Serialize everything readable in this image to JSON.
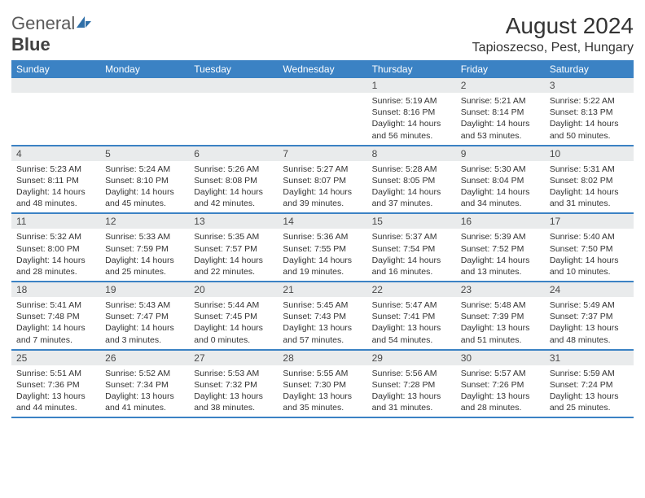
{
  "logo": {
    "text1": "General",
    "text2": "Blue"
  },
  "title": "August 2024",
  "location": "Tapioszecso, Pest, Hungary",
  "colors": {
    "header_bar": "#3b82c4",
    "day_number_bg": "#e9ebec",
    "text": "#333333",
    "logo_gray": "#5a5a5a",
    "logo_blue": "#2f6fa8"
  },
  "dow": [
    "Sunday",
    "Monday",
    "Tuesday",
    "Wednesday",
    "Thursday",
    "Friday",
    "Saturday"
  ],
  "weeks": [
    [
      {
        "n": "",
        "lines": []
      },
      {
        "n": "",
        "lines": []
      },
      {
        "n": "",
        "lines": []
      },
      {
        "n": "",
        "lines": []
      },
      {
        "n": "1",
        "lines": [
          "Sunrise: 5:19 AM",
          "Sunset: 8:16 PM",
          "Daylight: 14 hours",
          "and 56 minutes."
        ]
      },
      {
        "n": "2",
        "lines": [
          "Sunrise: 5:21 AM",
          "Sunset: 8:14 PM",
          "Daylight: 14 hours",
          "and 53 minutes."
        ]
      },
      {
        "n": "3",
        "lines": [
          "Sunrise: 5:22 AM",
          "Sunset: 8:13 PM",
          "Daylight: 14 hours",
          "and 50 minutes."
        ]
      }
    ],
    [
      {
        "n": "4",
        "lines": [
          "Sunrise: 5:23 AM",
          "Sunset: 8:11 PM",
          "Daylight: 14 hours",
          "and 48 minutes."
        ]
      },
      {
        "n": "5",
        "lines": [
          "Sunrise: 5:24 AM",
          "Sunset: 8:10 PM",
          "Daylight: 14 hours",
          "and 45 minutes."
        ]
      },
      {
        "n": "6",
        "lines": [
          "Sunrise: 5:26 AM",
          "Sunset: 8:08 PM",
          "Daylight: 14 hours",
          "and 42 minutes."
        ]
      },
      {
        "n": "7",
        "lines": [
          "Sunrise: 5:27 AM",
          "Sunset: 8:07 PM",
          "Daylight: 14 hours",
          "and 39 minutes."
        ]
      },
      {
        "n": "8",
        "lines": [
          "Sunrise: 5:28 AM",
          "Sunset: 8:05 PM",
          "Daylight: 14 hours",
          "and 37 minutes."
        ]
      },
      {
        "n": "9",
        "lines": [
          "Sunrise: 5:30 AM",
          "Sunset: 8:04 PM",
          "Daylight: 14 hours",
          "and 34 minutes."
        ]
      },
      {
        "n": "10",
        "lines": [
          "Sunrise: 5:31 AM",
          "Sunset: 8:02 PM",
          "Daylight: 14 hours",
          "and 31 minutes."
        ]
      }
    ],
    [
      {
        "n": "11",
        "lines": [
          "Sunrise: 5:32 AM",
          "Sunset: 8:00 PM",
          "Daylight: 14 hours",
          "and 28 minutes."
        ]
      },
      {
        "n": "12",
        "lines": [
          "Sunrise: 5:33 AM",
          "Sunset: 7:59 PM",
          "Daylight: 14 hours",
          "and 25 minutes."
        ]
      },
      {
        "n": "13",
        "lines": [
          "Sunrise: 5:35 AM",
          "Sunset: 7:57 PM",
          "Daylight: 14 hours",
          "and 22 minutes."
        ]
      },
      {
        "n": "14",
        "lines": [
          "Sunrise: 5:36 AM",
          "Sunset: 7:55 PM",
          "Daylight: 14 hours",
          "and 19 minutes."
        ]
      },
      {
        "n": "15",
        "lines": [
          "Sunrise: 5:37 AM",
          "Sunset: 7:54 PM",
          "Daylight: 14 hours",
          "and 16 minutes."
        ]
      },
      {
        "n": "16",
        "lines": [
          "Sunrise: 5:39 AM",
          "Sunset: 7:52 PM",
          "Daylight: 14 hours",
          "and 13 minutes."
        ]
      },
      {
        "n": "17",
        "lines": [
          "Sunrise: 5:40 AM",
          "Sunset: 7:50 PM",
          "Daylight: 14 hours",
          "and 10 minutes."
        ]
      }
    ],
    [
      {
        "n": "18",
        "lines": [
          "Sunrise: 5:41 AM",
          "Sunset: 7:48 PM",
          "Daylight: 14 hours",
          "and 7 minutes."
        ]
      },
      {
        "n": "19",
        "lines": [
          "Sunrise: 5:43 AM",
          "Sunset: 7:47 PM",
          "Daylight: 14 hours",
          "and 3 minutes."
        ]
      },
      {
        "n": "20",
        "lines": [
          "Sunrise: 5:44 AM",
          "Sunset: 7:45 PM",
          "Daylight: 14 hours",
          "and 0 minutes."
        ]
      },
      {
        "n": "21",
        "lines": [
          "Sunrise: 5:45 AM",
          "Sunset: 7:43 PM",
          "Daylight: 13 hours",
          "and 57 minutes."
        ]
      },
      {
        "n": "22",
        "lines": [
          "Sunrise: 5:47 AM",
          "Sunset: 7:41 PM",
          "Daylight: 13 hours",
          "and 54 minutes."
        ]
      },
      {
        "n": "23",
        "lines": [
          "Sunrise: 5:48 AM",
          "Sunset: 7:39 PM",
          "Daylight: 13 hours",
          "and 51 minutes."
        ]
      },
      {
        "n": "24",
        "lines": [
          "Sunrise: 5:49 AM",
          "Sunset: 7:37 PM",
          "Daylight: 13 hours",
          "and 48 minutes."
        ]
      }
    ],
    [
      {
        "n": "25",
        "lines": [
          "Sunrise: 5:51 AM",
          "Sunset: 7:36 PM",
          "Daylight: 13 hours",
          "and 44 minutes."
        ]
      },
      {
        "n": "26",
        "lines": [
          "Sunrise: 5:52 AM",
          "Sunset: 7:34 PM",
          "Daylight: 13 hours",
          "and 41 minutes."
        ]
      },
      {
        "n": "27",
        "lines": [
          "Sunrise: 5:53 AM",
          "Sunset: 7:32 PM",
          "Daylight: 13 hours",
          "and 38 minutes."
        ]
      },
      {
        "n": "28",
        "lines": [
          "Sunrise: 5:55 AM",
          "Sunset: 7:30 PM",
          "Daylight: 13 hours",
          "and 35 minutes."
        ]
      },
      {
        "n": "29",
        "lines": [
          "Sunrise: 5:56 AM",
          "Sunset: 7:28 PM",
          "Daylight: 13 hours",
          "and 31 minutes."
        ]
      },
      {
        "n": "30",
        "lines": [
          "Sunrise: 5:57 AM",
          "Sunset: 7:26 PM",
          "Daylight: 13 hours",
          "and 28 minutes."
        ]
      },
      {
        "n": "31",
        "lines": [
          "Sunrise: 5:59 AM",
          "Sunset: 7:24 PM",
          "Daylight: 13 hours",
          "and 25 minutes."
        ]
      }
    ]
  ]
}
